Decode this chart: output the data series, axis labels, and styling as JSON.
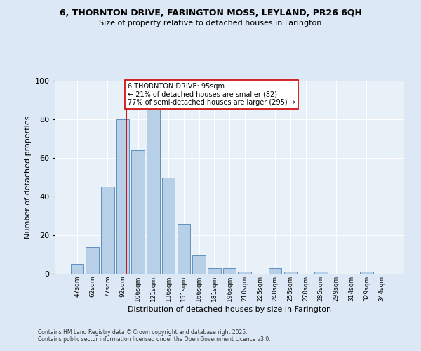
{
  "title1": "6, THORNTON DRIVE, FARINGTON MOSS, LEYLAND, PR26 6QH",
  "title2": "Size of property relative to detached houses in Farington",
  "xlabel": "Distribution of detached houses by size in Farington",
  "ylabel": "Number of detached properties",
  "bar_labels": [
    "47sqm",
    "62sqm",
    "77sqm",
    "92sqm",
    "106sqm",
    "121sqm",
    "136sqm",
    "151sqm",
    "166sqm",
    "181sqm",
    "196sqm",
    "210sqm",
    "225sqm",
    "240sqm",
    "255sqm",
    "270sqm",
    "285sqm",
    "299sqm",
    "314sqm",
    "329sqm",
    "344sqm"
  ],
  "bar_values": [
    5,
    14,
    45,
    80,
    64,
    85,
    50,
    26,
    10,
    3,
    3,
    1,
    0,
    3,
    1,
    0,
    1,
    0,
    0,
    1,
    0
  ],
  "bar_color": "#b8cfe8",
  "bar_edge_color": "#6090c0",
  "ref_line_color": "#cc0000",
  "annotation_text": "6 THORNTON DRIVE: 95sqm\n← 21% of detached houses are smaller (82)\n77% of semi-detached houses are larger (295) →",
  "annotation_box_color": "#ffffff",
  "annotation_border_color": "#cc0000",
  "ylim": [
    0,
    100
  ],
  "yticks": [
    0,
    20,
    40,
    60,
    80,
    100
  ],
  "footnote1": "Contains HM Land Registry data © Crown copyright and database right 2025.",
  "footnote2": "Contains public sector information licensed under the Open Government Licence v3.0.",
  "bg_color": "#dce8f5",
  "plot_bg_color": "#e8f0f8"
}
